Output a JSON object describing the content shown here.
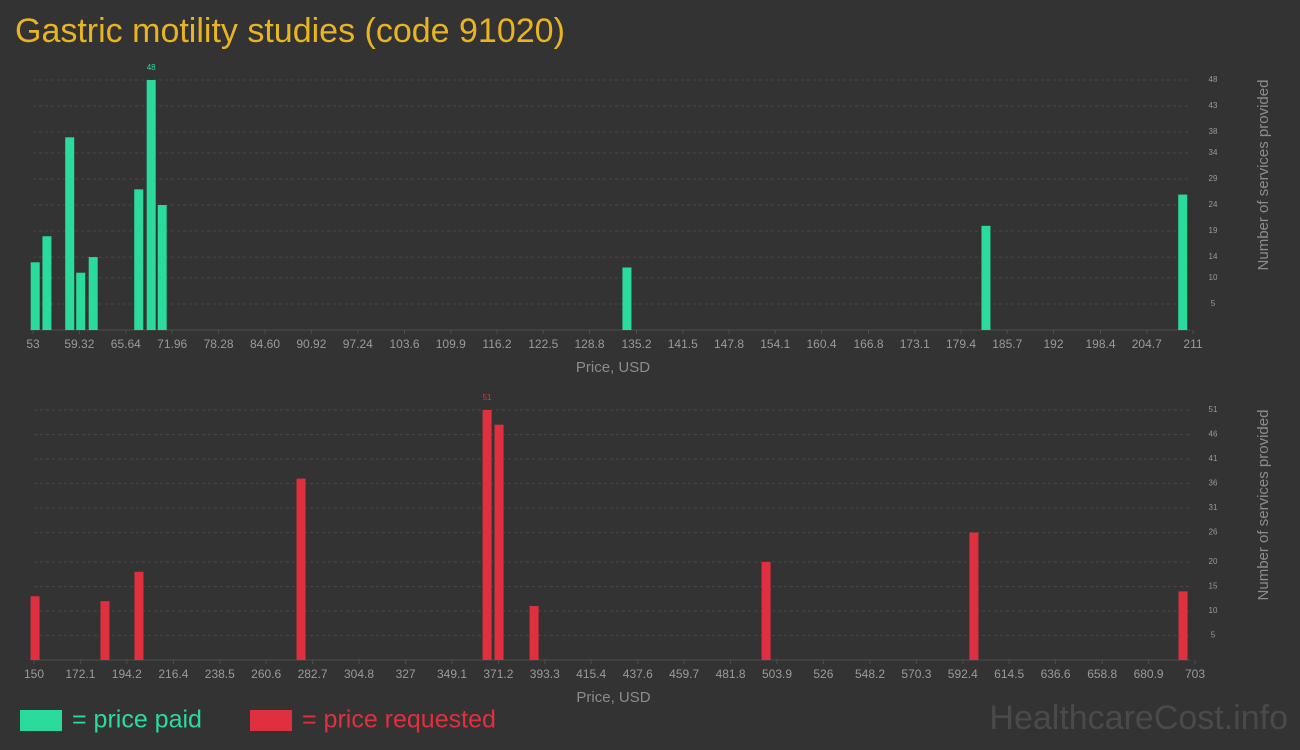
{
  "title": "Gastric motility studies (code 91020)",
  "watermark": "HealthcareCost.info",
  "chart_data": [
    {
      "type": "bar",
      "x_label": "Price, USD",
      "y_label": "Number of services provided",
      "x": [
        53.3,
        54.9,
        58,
        59.5,
        61.2,
        67.4,
        69.1,
        70.6,
        133.9,
        182.8,
        209.6
      ],
      "series": [
        {
          "name": "= price paid",
          "color": "#2bdb9c",
          "values": [
            13,
            18,
            37,
            11,
            14,
            27,
            48,
            24,
            12,
            20,
            26
          ]
        }
      ],
      "label_max": true,
      "grid": true,
      "xlim": [
        53,
        211
      ],
      "xticks": [
        53,
        59.32,
        65.64,
        71.96,
        78.28,
        {
          "value": 84.6,
          "label": "84.60"
        },
        90.92,
        97.24,
        103.6,
        109.9,
        116.2,
        122.5,
        128.8,
        135.2,
        141.5,
        147.8,
        154.1,
        160.4,
        166.8,
        173.1,
        179.4,
        185.7,
        192,
        198.4,
        204.7,
        211
      ],
      "ylim": [
        0,
        48
      ],
      "yticks": [
        5,
        10,
        14,
        19,
        24,
        29,
        34,
        38,
        43,
        48
      ]
    },
    {
      "type": "bar",
      "x_label": "Price, USD",
      "y_label": "Number of services provided",
      "x": [
        150.5,
        183.8,
        200,
        277.2,
        365.8,
        371.5,
        388.2,
        498.7,
        597.7,
        697.3
      ],
      "series": [
        {
          "name": "= price requested",
          "color": "#e0303f",
          "values": [
            13,
            12,
            18,
            37,
            51,
            48,
            11,
            20,
            26,
            14
          ]
        }
      ],
      "label_max": true,
      "grid": true,
      "xlim": [
        150,
        703
      ],
      "xticks": [
        150,
        172.1,
        194.2,
        216.4,
        238.5,
        260.6,
        282.7,
        304.8,
        327,
        349.1,
        371.2,
        393.3,
        415.4,
        437.6,
        459.7,
        481.8,
        503.9,
        526,
        548.2,
        570.3,
        592.4,
        614.5,
        636.6,
        658.8,
        680.9,
        703
      ],
      "ylim": [
        0,
        51
      ],
      "yticks": [
        5,
        10,
        15,
        20,
        26,
        31,
        36,
        41,
        46,
        51
      ]
    }
  ]
}
